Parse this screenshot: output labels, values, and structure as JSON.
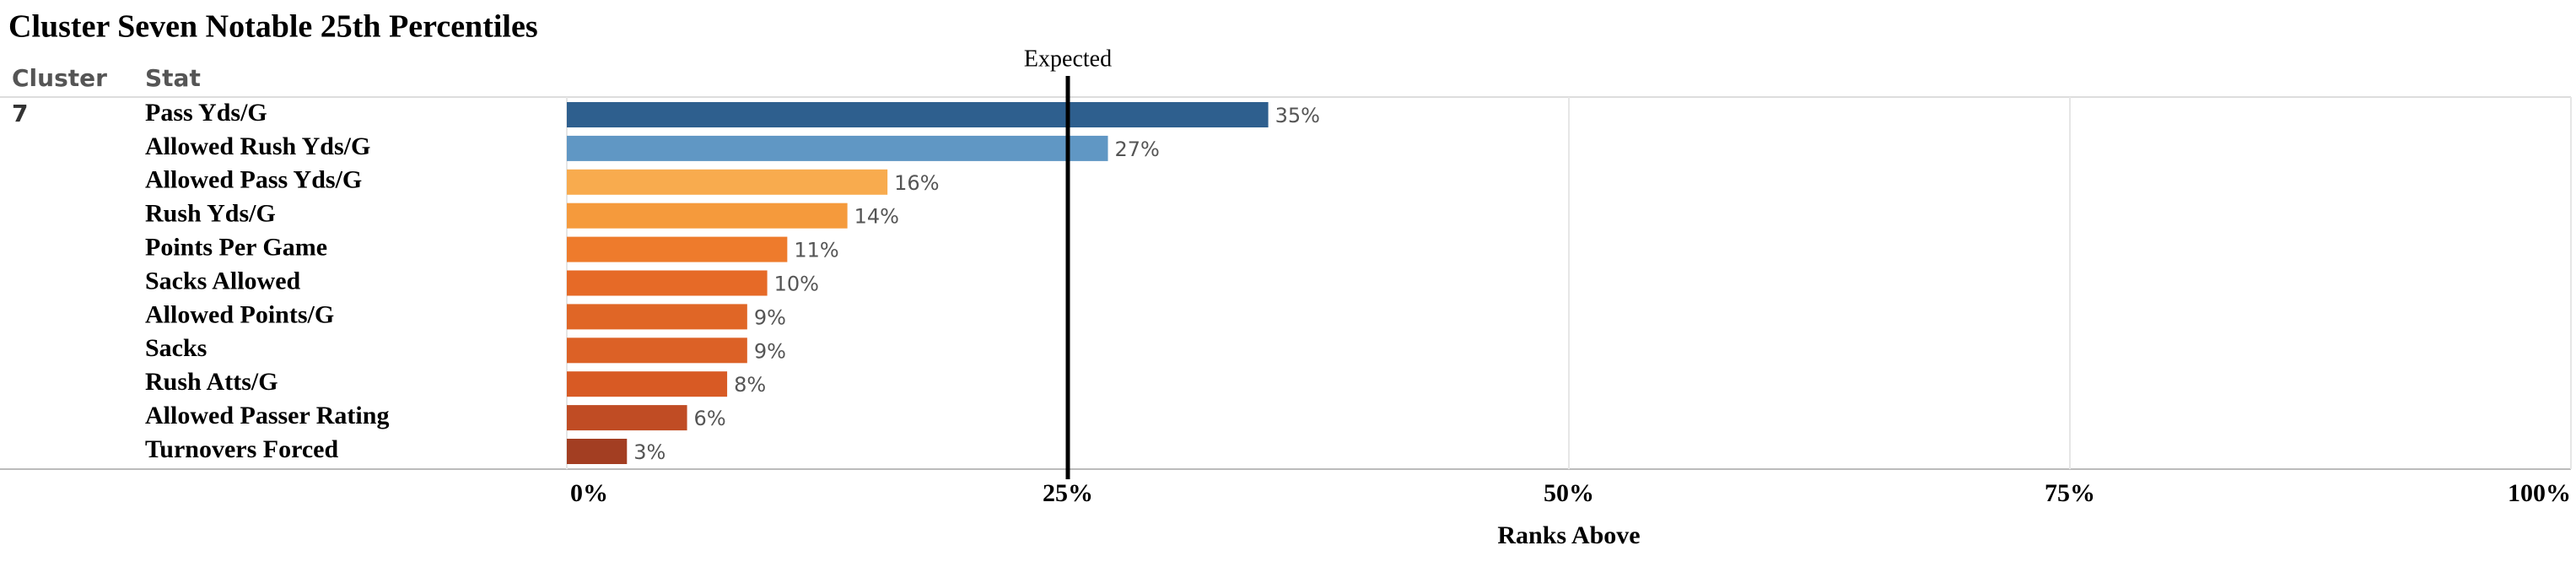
{
  "chart_data": {
    "type": "bar",
    "orientation": "horizontal",
    "title": "Cluster Seven Notable 25th Percentiles",
    "column_headers": [
      "Cluster",
      "Stat"
    ],
    "cluster": "7",
    "categories": [
      "Pass Yds/G",
      "Allowed Rush Yds/G",
      "Allowed Pass Yds/G",
      "Rush Yds/G",
      "Points Per Game",
      "Sacks Allowed",
      "Allowed Points/G",
      "Sacks",
      "Rush Atts/G",
      "Allowed Passer Rating",
      "Turnovers Forced"
    ],
    "values": [
      35,
      27,
      16,
      14,
      11,
      10,
      9,
      9,
      8,
      6,
      3
    ],
    "value_labels": [
      "35%",
      "27%",
      "16%",
      "14%",
      "11%",
      "10%",
      "9%",
      "9%",
      "8%",
      "6%",
      "3%"
    ],
    "colors": [
      "#2e5f8e",
      "#6097c4",
      "#f8ab4e",
      "#f59a3c",
      "#ee7b2c",
      "#e66a27",
      "#e06626",
      "#dc6126",
      "#d85a24",
      "#c04c24",
      "#a33e22"
    ],
    "xlim": [
      0,
      100
    ],
    "xticks": [
      {
        "value": 0,
        "label": "0%"
      },
      {
        "value": 25,
        "label": "25%"
      },
      {
        "value": 50,
        "label": "50%"
      },
      {
        "value": 75,
        "label": "75%"
      },
      {
        "value": 100,
        "label": "100%"
      }
    ],
    "x_label": "Ranks Above",
    "reference_line": {
      "value": 25,
      "label": "Expected"
    },
    "grid": true
  }
}
